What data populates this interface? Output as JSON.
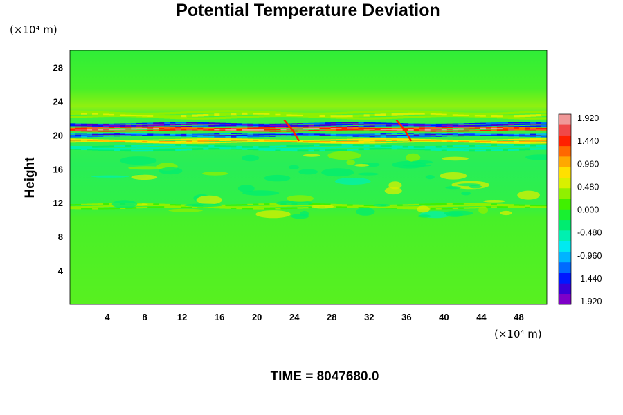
{
  "chart_data": {
    "type": "heatmap",
    "title": "Potential Temperature Deviation",
    "ylabel": "Height",
    "x_unit": "(×10⁴ m)",
    "y_unit": "(×10⁴ m)",
    "x_ticks": [
      4,
      8,
      12,
      16,
      20,
      24,
      28,
      32,
      36,
      40,
      44,
      48
    ],
    "y_ticks": [
      4,
      8,
      12,
      16,
      20,
      24,
      28
    ],
    "xlim": [
      0,
      51
    ],
    "ylim": [
      0,
      30
    ],
    "colorbar": {
      "ticks": [
        "1.920",
        "1.440",
        "0.960",
        "0.480",
        "0.000",
        "-0.480",
        "-0.960",
        "-1.440",
        "-1.920"
      ],
      "range": [
        -2.0,
        2.0
      ],
      "colors": [
        "#7e00c8",
        "#3a00d8",
        "#0018ff",
        "#006aff",
        "#00b4ff",
        "#00eaf0",
        "#00f0b0",
        "#00ec70",
        "#18f030",
        "#40f000",
        "#90f000",
        "#d8f000",
        "#ffe000",
        "#ffa800",
        "#ff6800",
        "#ff2000",
        "#f04848",
        "#f09898"
      ]
    },
    "field": {
      "background_value": 0.0,
      "bands": [
        {
          "y_center": 22.4,
          "amplitude": 0.5,
          "width": 0.6
        },
        {
          "y_center": 21.2,
          "amplitude": -1.9,
          "width": 0.35
        },
        {
          "y_center": 20.7,
          "amplitude": 1.9,
          "width": 0.35
        },
        {
          "y_center": 20.0,
          "amplitude": -1.6,
          "width": 0.3
        },
        {
          "y_center": 19.3,
          "amplitude": 1.0,
          "width": 0.35
        },
        {
          "y_center": 18.5,
          "amplitude": -0.6,
          "width": 0.5
        },
        {
          "y_center": 11.6,
          "amplitude": 0.3,
          "width": 0.4
        }
      ],
      "features": [
        {
          "x": 23.5,
          "y": 20.6,
          "label": "wave break near x=24"
        },
        {
          "x": 35.5,
          "y": 20.6,
          "label": "wave break near x=36"
        }
      ]
    },
    "grid": false,
    "legend_placement": "right colorbar"
  },
  "footer": {
    "time_label": "TIME = 8047680.0"
  }
}
